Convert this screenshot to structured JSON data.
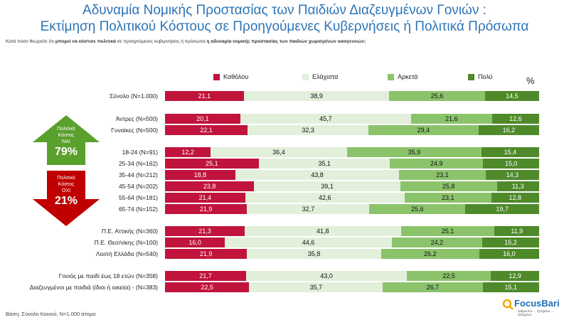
{
  "title_line1": "Αδυναμία Νομικής Προστασίας των Παιδιών Διαζευγμένων Γονιών :",
  "title_line2": "Εκτίμηση Πολιτικού Κόστους σε Προηγούμενες Κυβερνήσεις ή Πολιτικά Πρόσωπα",
  "question_pre": "Κατά πόσο θεωρείτε ότι ",
  "question_bold1": "μπορεί να κόστισε πολιτικά",
  "question_mid": " σε προηγούμενες κυβερνήσεις ή πρόσωπα ",
  "question_bold2": "η αδυναμία νομικής προστασίας των παιδιών χωρισμένων οικογενειών;",
  "unit_label": "%",
  "footer": "Βάση: Σύνολο Κοινού, Ν=1.000 άτομα",
  "logo_text": "FocusBari",
  "logo_sub": "άνθρωποι ← ζητήματα → δεδομένα",
  "side_yes": {
    "label_lines": [
      "Πολιτικό",
      "Κόστος",
      "ΝΑΙ"
    ],
    "value": "79%",
    "color": "#5aa02c"
  },
  "side_no": {
    "label_lines": [
      "Πολιτικό",
      "Κόστος",
      "ΟΧΙ"
    ],
    "value": "21%",
    "color": "#c00000"
  },
  "chart_data": {
    "type": "bar",
    "orientation": "horizontal-stacked-100",
    "series": [
      {
        "name": "Καθόλου",
        "color": "#c0143c"
      },
      {
        "name": "Ελάχιστα",
        "color": "#e2efda"
      },
      {
        "name": "Αρκετά",
        "color": "#8bc36b"
      },
      {
        "name": "Πολύ",
        "color": "#4e8a2a"
      }
    ],
    "rows": [
      {
        "label": "Σύνολο (Ν=1.000)",
        "values": [
          21.1,
          38.9,
          25.6,
          14.5
        ],
        "display": [
          "21,1",
          "38,9",
          "25,6",
          "14,5"
        ]
      },
      {
        "label": "Άντρες (Ν=500)",
        "values": [
          20.1,
          45.7,
          21.6,
          12.6
        ],
        "display": [
          "20,1",
          "45,7",
          "21,6",
          "12,6"
        ]
      },
      {
        "label": "Γυναίκες (Ν=500)",
        "values": [
          22.1,
          32.3,
          29.4,
          16.2
        ],
        "display": [
          "22,1",
          "32,3",
          "29,4",
          "16,2"
        ]
      },
      {
        "label": "18-24 (Ν=91)",
        "values": [
          12.2,
          36.4,
          35.9,
          15.4
        ],
        "display": [
          "12,2",
          "36,4",
          "35,9",
          "15,4"
        ]
      },
      {
        "label": "25-34 (Ν=162)",
        "values": [
          25.1,
          35.1,
          24.9,
          15.0
        ],
        "display": [
          "25,1",
          "35,1",
          "24,9",
          "15,0"
        ]
      },
      {
        "label": "35-44 (Ν=212)",
        "values": [
          18.8,
          43.8,
          23.1,
          14.3
        ],
        "display": [
          "18,8",
          "43,8",
          "23,1",
          "14,3"
        ]
      },
      {
        "label": "45-54 (Ν=202)",
        "values": [
          23.8,
          39.1,
          25.8,
          11.3
        ],
        "display": [
          "23,8",
          "39,1",
          "25,8",
          "11,3"
        ]
      },
      {
        "label": "55-64 (Ν=181)",
        "values": [
          21.4,
          42.6,
          23.1,
          12.8
        ],
        "display": [
          "21,4",
          "42,6",
          "23,1",
          "12,8"
        ]
      },
      {
        "label": "65-74 (Ν=152)",
        "values": [
          21.9,
          32.7,
          25.6,
          19.7
        ],
        "display": [
          "21,9",
          "32,7",
          "25,6",
          "19,7"
        ]
      },
      {
        "label": "Π.Ε. Αττικής (Ν=360)",
        "values": [
          21.3,
          41.8,
          25.1,
          11.9
        ],
        "display": [
          "21,3",
          "41,8",
          "25,1",
          "11,9"
        ]
      },
      {
        "label": "Π.Ε. Θεσ/νίκης (Ν=100)",
        "values": [
          16.0,
          44.6,
          24.2,
          15.2
        ],
        "display": [
          "16,0",
          "44,6",
          "24,2",
          "15,2"
        ]
      },
      {
        "label": "Λοιπή Ελλάδα (Ν=540)",
        "values": [
          21.9,
          35.8,
          26.2,
          16.0
        ],
        "display": [
          "21,9",
          "35,8",
          "26,2",
          "16,0"
        ]
      },
      {
        "label": "Γονιός με παιδί έως 18 ετών (Ν=358)",
        "values": [
          21.7,
          43.0,
          22.5,
          12.9
        ],
        "display": [
          "21,7",
          "43,0",
          "22,5",
          "12,9"
        ]
      },
      {
        "label": "Διαζευγμένοι με παιδιά (ίδιοι ή οικείοι) - (Ν=383)",
        "values": [
          22.5,
          35.7,
          26.7,
          15.1
        ],
        "display": [
          "22,5",
          "35,7",
          "26,7",
          "15,1"
        ]
      }
    ]
  }
}
